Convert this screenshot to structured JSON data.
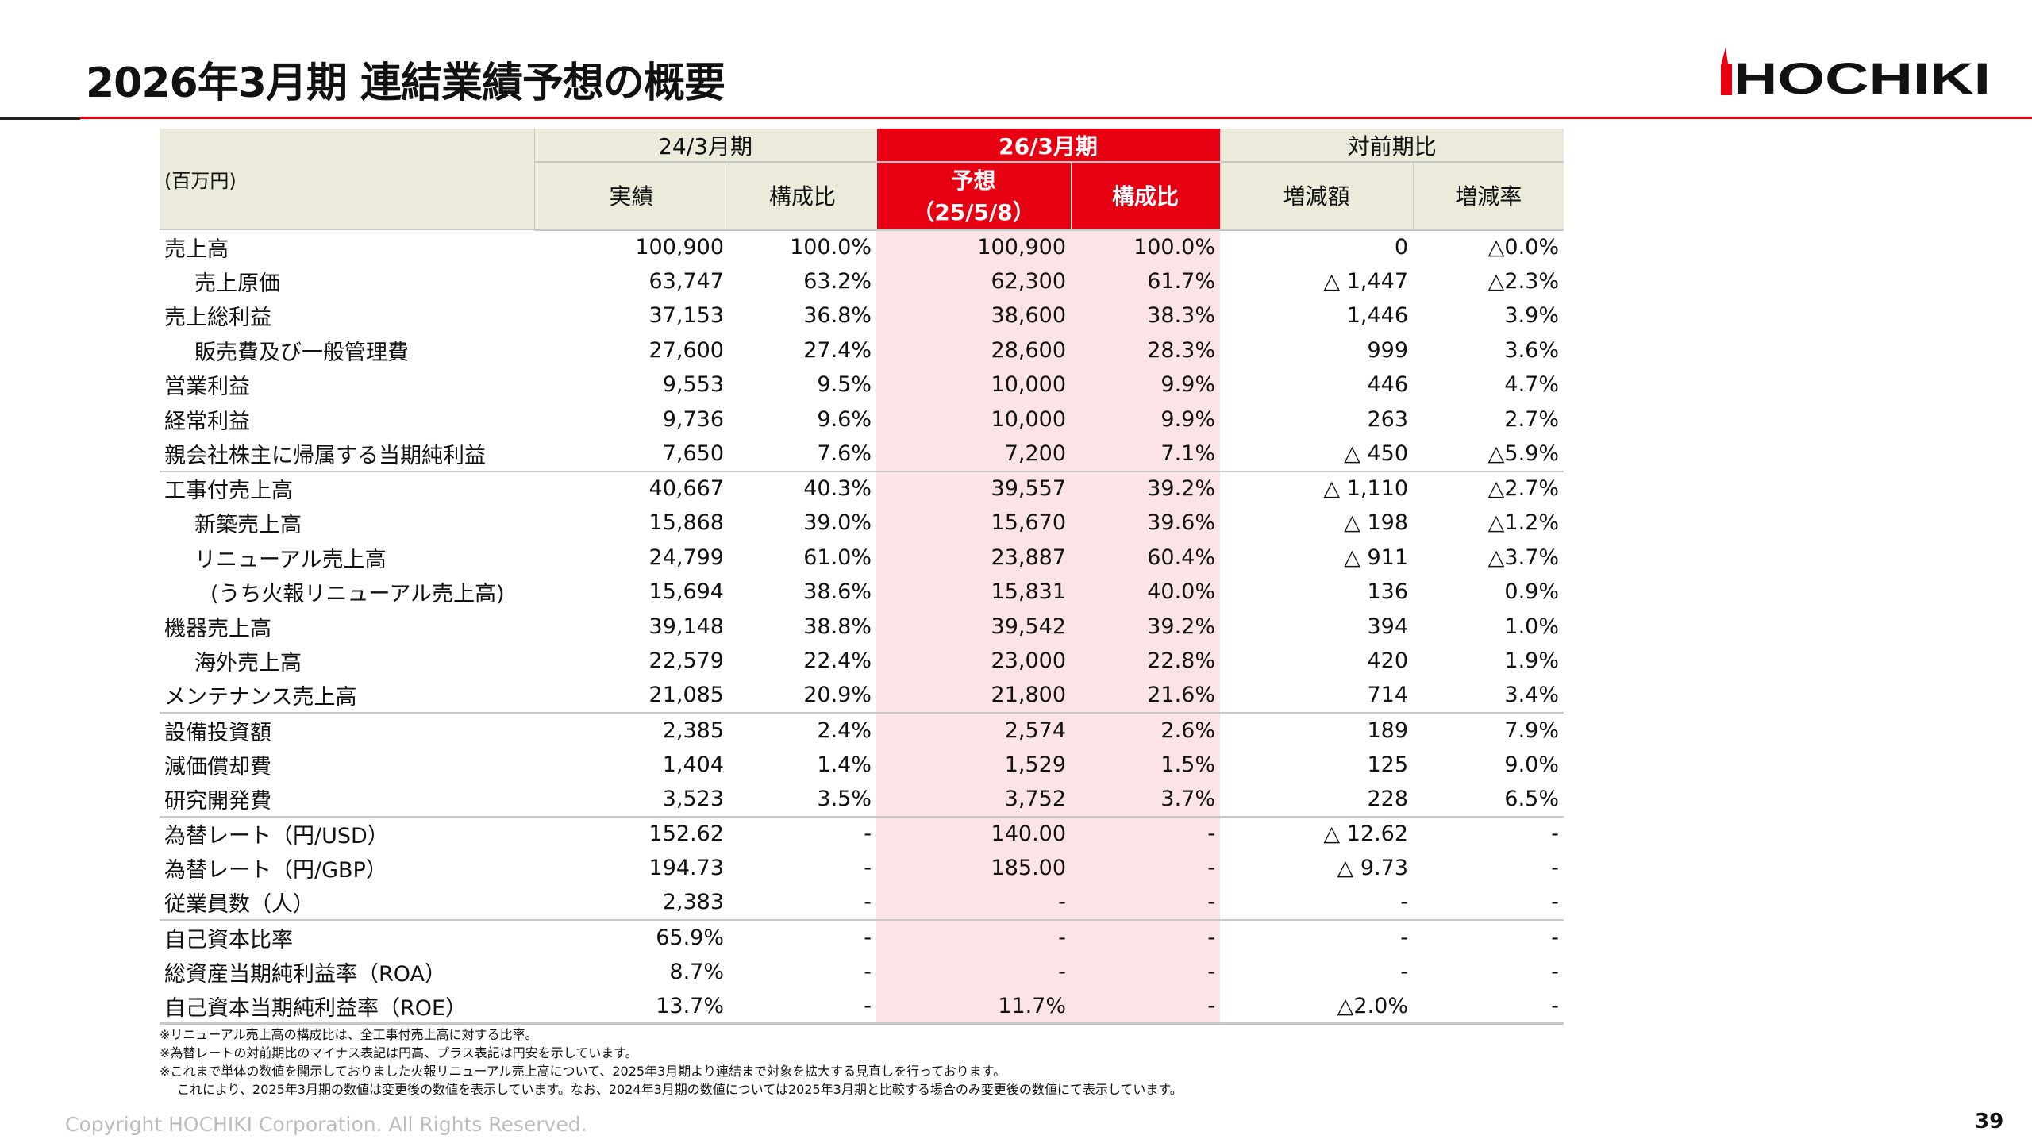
{
  "title": "2026年3月期 連結業績予想の概要",
  "logo_text": "HOCHIKI",
  "colors": {
    "accent": "#e60012",
    "header_bg": "#ecebdb",
    "forecast_bg": "#fce4e6"
  },
  "table": {
    "unit": "(百万円)",
    "groups": [
      "24/3月期",
      "26/3月期",
      "対前期比"
    ],
    "columns": [
      "実績",
      "構成比",
      "予想",
      "（25/5/8）",
      "構成比",
      "増減額",
      "増減率"
    ],
    "rows": [
      {
        "label": "売上高",
        "indent": 0,
        "values": [
          "100,900",
          "100.0%",
          "100,900",
          "100.0%",
          "0",
          "△0.0%"
        ]
      },
      {
        "label": "売上原価",
        "indent": 1,
        "values": [
          "63,747",
          "63.2%",
          "62,300",
          "61.7%",
          "△ 1,447",
          "△2.3%"
        ]
      },
      {
        "label": "売上総利益",
        "indent": 0,
        "values": [
          "37,153",
          "36.8%",
          "38,600",
          "38.3%",
          "1,446",
          "3.9%"
        ]
      },
      {
        "label": "販売費及び一般管理費",
        "indent": 1,
        "values": [
          "27,600",
          "27.4%",
          "28,600",
          "28.3%",
          "999",
          "3.6%"
        ]
      },
      {
        "label": "営業利益",
        "indent": 0,
        "values": [
          "9,553",
          "9.5%",
          "10,000",
          "9.9%",
          "446",
          "4.7%"
        ]
      },
      {
        "label": "経常利益",
        "indent": 0,
        "values": [
          "9,736",
          "9.6%",
          "10,000",
          "9.9%",
          "263",
          "2.7%"
        ]
      },
      {
        "label": "親会社株主に帰属する当期純利益",
        "indent": 0,
        "sep": true,
        "values": [
          "7,650",
          "7.6%",
          "7,200",
          "7.1%",
          "△ 450",
          "△5.9%"
        ]
      },
      {
        "label": "工事付売上高",
        "indent": 0,
        "values": [
          "40,667",
          "40.3%",
          "39,557",
          "39.2%",
          "△ 1,110",
          "△2.7%"
        ]
      },
      {
        "label": "新築売上高",
        "indent": 1,
        "values": [
          "15,868",
          "39.0%",
          "15,670",
          "39.6%",
          "△ 198",
          "△1.2%"
        ]
      },
      {
        "label": "リニューアル売上高",
        "indent": 1,
        "values": [
          "24,799",
          "61.0%",
          "23,887",
          "60.4%",
          "△ 911",
          "△3.7%"
        ]
      },
      {
        "label": "(うち火報リニューアル売上高)",
        "indent": 2,
        "values": [
          "15,694",
          "38.6%",
          "15,831",
          "40.0%",
          "136",
          "0.9%"
        ]
      },
      {
        "label": "機器売上高",
        "indent": 0,
        "values": [
          "39,148",
          "38.8%",
          "39,542",
          "39.2%",
          "394",
          "1.0%"
        ]
      },
      {
        "label": "海外売上高",
        "indent": 1,
        "values": [
          "22,579",
          "22.4%",
          "23,000",
          "22.8%",
          "420",
          "1.9%"
        ]
      },
      {
        "label": "メンテナンス売上高",
        "indent": 0,
        "sep": true,
        "values": [
          "21,085",
          "20.9%",
          "21,800",
          "21.6%",
          "714",
          "3.4%"
        ]
      },
      {
        "label": "設備投資額",
        "indent": 0,
        "values": [
          "2,385",
          "2.4%",
          "2,574",
          "2.6%",
          "189",
          "7.9%"
        ]
      },
      {
        "label": "減価償却費",
        "indent": 0,
        "values": [
          "1,404",
          "1.4%",
          "1,529",
          "1.5%",
          "125",
          "9.0%"
        ]
      },
      {
        "label": "研究開発費",
        "indent": 0,
        "sep": true,
        "values": [
          "3,523",
          "3.5%",
          "3,752",
          "3.7%",
          "228",
          "6.5%"
        ]
      },
      {
        "label": "為替レート（円/USD）",
        "indent": 0,
        "values": [
          "152.62",
          "-",
          "140.00",
          "-",
          "△ 12.62",
          "-"
        ]
      },
      {
        "label": "為替レート（円/GBP）",
        "indent": 0,
        "values": [
          "194.73",
          "-",
          "185.00",
          "-",
          "△ 9.73",
          "-"
        ]
      },
      {
        "label": "従業員数（人）",
        "indent": 0,
        "sep": true,
        "values": [
          "2,383",
          "-",
          "-",
          "-",
          "-",
          "-"
        ]
      },
      {
        "label": "自己資本比率",
        "indent": 0,
        "values": [
          "65.9%",
          "-",
          "-",
          "-",
          "-",
          "-"
        ]
      },
      {
        "label": "総資産当期純利益率（ROA）",
        "indent": 0,
        "values": [
          "8.7%",
          "-",
          "-",
          "-",
          "-",
          "-"
        ]
      },
      {
        "label": "自己資本当期純利益率（ROE）",
        "indent": 0,
        "values": [
          "13.7%",
          "-",
          "11.7%",
          "-",
          "△2.0%",
          "-"
        ]
      }
    ]
  },
  "notes": [
    "※リニューアル売上高の構成比は、全工事付売上高に対する比率。",
    "※為替レートの対前期比のマイナス表記は円高、プラス表記は円安を示しています。",
    "※これまで単体の数値を開示しておりました火報リニューアル売上高について、2025年3月期より連結まで対象を拡大する見直しを行っております。",
    "これにより、2025年3月期の数値は変更後の数値を表示しています。なお、2024年3月期の数値については2025年3月期と比較する場合のみ変更後の数値にて表示しています。"
  ],
  "copyright": "Copyright HOCHIKI Corporation. All Rights Reserved.",
  "page_number": "39"
}
